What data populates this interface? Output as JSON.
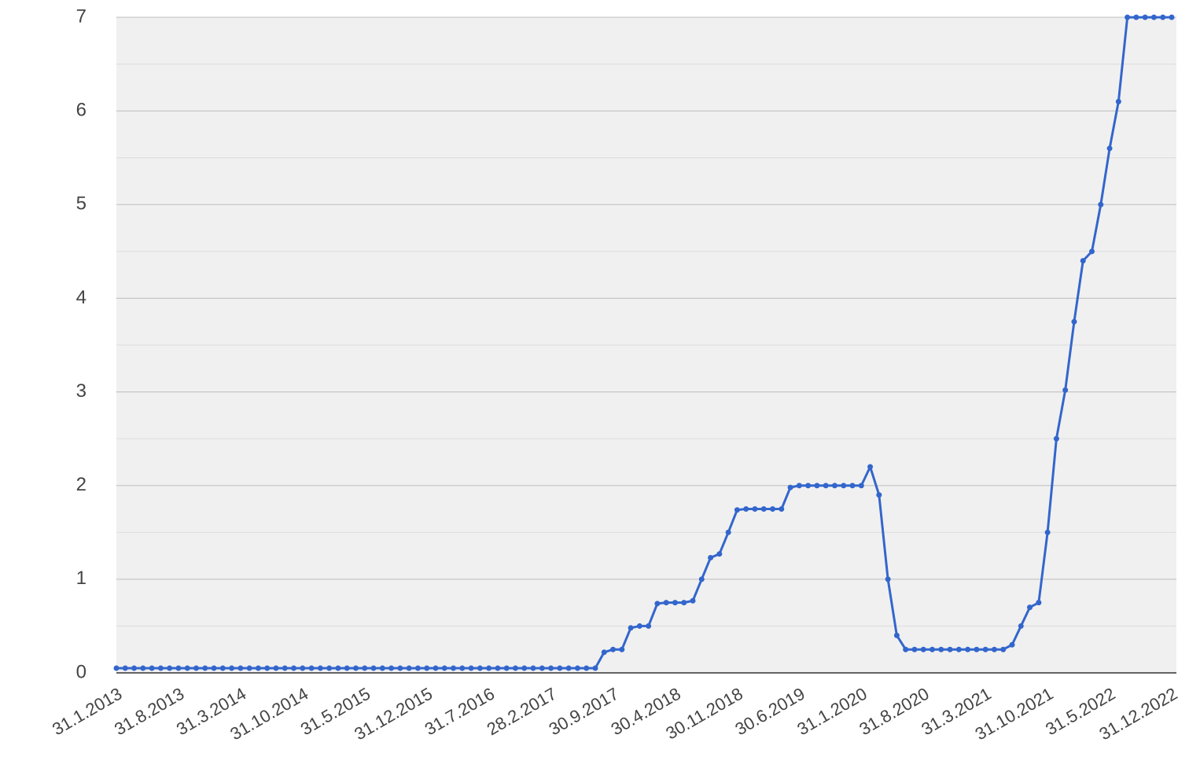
{
  "chart_data": {
    "type": "line",
    "categories": [
      "31.1.2013",
      null,
      null,
      null,
      null,
      null,
      null,
      "31.8.2013",
      null,
      null,
      null,
      null,
      null,
      null,
      "31.3.2014",
      null,
      null,
      null,
      null,
      null,
      null,
      "31.10.2014",
      null,
      null,
      null,
      null,
      null,
      null,
      "31.5.2015",
      null,
      null,
      null,
      null,
      null,
      null,
      "31.12.2015",
      null,
      null,
      null,
      null,
      null,
      null,
      "31.7.2016",
      null,
      null,
      null,
      null,
      null,
      null,
      "28.2.2017",
      null,
      null,
      null,
      null,
      null,
      null,
      "30.9.2017",
      null,
      null,
      null,
      null,
      null,
      null,
      "30.4.2018",
      null,
      null,
      null,
      null,
      null,
      null,
      "30.11.2018",
      null,
      null,
      null,
      null,
      null,
      null,
      "30.6.2019",
      null,
      null,
      null,
      null,
      null,
      null,
      "31.1.2020",
      null,
      null,
      null,
      null,
      null,
      null,
      "31.8.2020",
      null,
      null,
      null,
      null,
      null,
      null,
      "31.3.2021",
      null,
      null,
      null,
      null,
      null,
      null,
      "31.10.2021",
      null,
      null,
      null,
      null,
      null,
      null,
      "31.5.2022",
      null,
      null,
      null,
      null,
      null,
      null,
      "31.12.2022"
    ],
    "series": [
      {
        "color": "#3366cc",
        "values": [
          0.05,
          0.05,
          0.05,
          0.05,
          0.05,
          0.05,
          0.05,
          0.05,
          0.05,
          0.05,
          0.05,
          0.05,
          0.05,
          0.05,
          0.05,
          0.05,
          0.05,
          0.05,
          0.05,
          0.05,
          0.05,
          0.05,
          0.05,
          0.05,
          0.05,
          0.05,
          0.05,
          0.05,
          0.05,
          0.05,
          0.05,
          0.05,
          0.05,
          0.05,
          0.05,
          0.05,
          0.05,
          0.05,
          0.05,
          0.05,
          0.05,
          0.05,
          0.05,
          0.05,
          0.05,
          0.05,
          0.05,
          0.05,
          0.05,
          0.05,
          0.05,
          0.05,
          0.05,
          0.05,
          0.05,
          0.22,
          0.25,
          0.25,
          0.48,
          0.5,
          0.5,
          0.74,
          0.75,
          0.75,
          0.75,
          0.77,
          1,
          1.23,
          1.27,
          1.5,
          1.74,
          1.75,
          1.75,
          1.75,
          1.75,
          1.75,
          1.98,
          2,
          2,
          2,
          2,
          2,
          2,
          2,
          2,
          2.2,
          1.9,
          1,
          0.4,
          0.25,
          0.25,
          0.25,
          0.25,
          0.25,
          0.25,
          0.25,
          0.25,
          0.25,
          0.25,
          0.25,
          0.25,
          0.3,
          0.5,
          0.7,
          0.75,
          1.5,
          2.5,
          3.02,
          3.75,
          4.4,
          4.5,
          5,
          5.6,
          6.1,
          7,
          7,
          7,
          7,
          7,
          7
        ]
      }
    ],
    "ylim": [
      0,
      7
    ],
    "yticks": [
      0,
      1,
      2,
      3,
      4,
      5,
      6,
      7
    ],
    "yminorticks": [
      0.5,
      1.5,
      2.5,
      3.5,
      4.5,
      5.5,
      6.5
    ],
    "grid": true
  }
}
